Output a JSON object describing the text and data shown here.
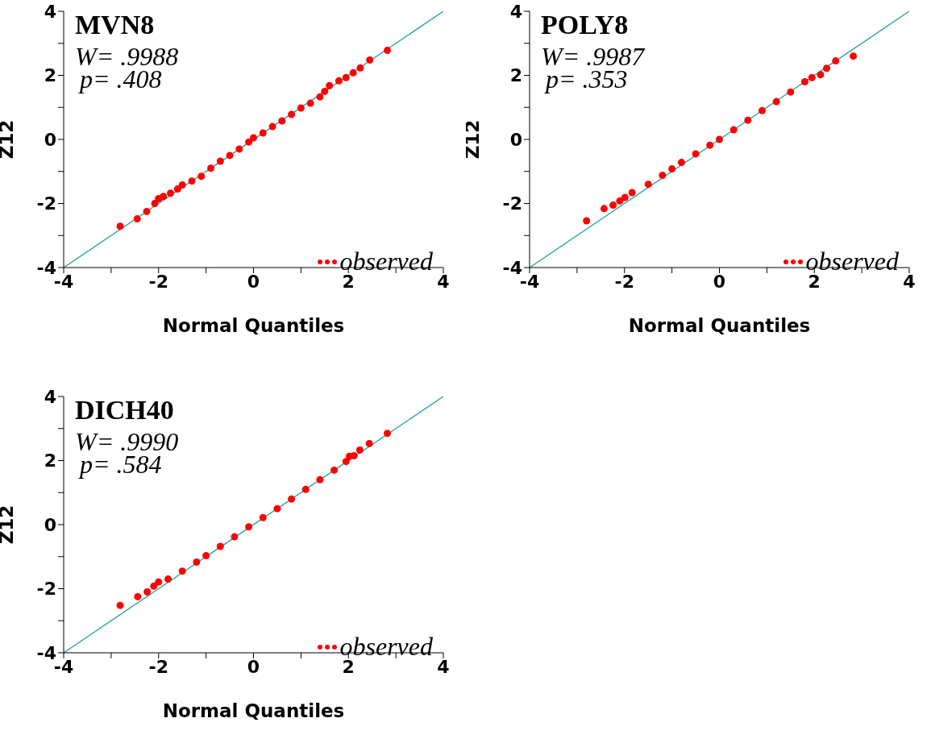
{
  "chart_data": [
    {
      "type": "scatter",
      "title": "MVN8",
      "xlabel": "Normal Quantiles",
      "ylabel": "Z12",
      "annotations": [
        "W= .9988",
        "p= .408"
      ],
      "xlim": [
        -4,
        4
      ],
      "ylim": [
        -4,
        4
      ],
      "xticks": [
        -4,
        {
          "value": -3,
          "label": null
        },
        -2,
        {
          "value": -1,
          "label": null
        },
        0,
        {
          "value": 1,
          "label": null
        },
        2,
        {
          "value": 3,
          "label": null
        },
        4
      ],
      "yticks": [
        -4,
        {
          "value": -3,
          "label": null
        },
        -2,
        {
          "value": -1,
          "label": null
        },
        0,
        {
          "value": 1,
          "label": null
        },
        2,
        {
          "value": 3,
          "label": null
        },
        4
      ],
      "legend": "bottom right",
      "series": [
        {
          "name": "observed",
          "color": "#ff0000",
          "marker": "circle",
          "x": [
            -2.81,
            -2.45,
            -2.25,
            -2.08,
            -2.0,
            -1.9,
            -1.75,
            -1.6,
            -1.5,
            -1.3,
            -1.1,
            -0.9,
            -0.7,
            -0.5,
            -0.3,
            -0.1,
            0,
            0.2,
            0.4,
            0.6,
            0.8,
            1.0,
            1.2,
            1.4,
            1.5,
            1.6,
            1.8,
            1.95,
            2.1,
            2.25,
            2.45,
            2.82
          ],
          "values": [
            -2.71,
            -2.48,
            -2.25,
            -2.0,
            -1.85,
            -1.78,
            -1.68,
            -1.55,
            -1.42,
            -1.3,
            -1.15,
            -0.9,
            -0.68,
            -0.5,
            -0.3,
            -0.08,
            0.05,
            0.2,
            0.4,
            0.58,
            0.78,
            0.98,
            1.13,
            1.33,
            1.5,
            1.68,
            1.83,
            1.93,
            2.08,
            2.23,
            2.48,
            2.78
          ]
        },
        {
          "type": "line",
          "color": "#20a0a0",
          "x": [
            -4,
            4
          ],
          "values": [
            -4,
            4
          ]
        }
      ]
    },
    {
      "type": "scatter",
      "title": "POLY8",
      "xlabel": "Normal Quantiles",
      "ylabel": "Z12",
      "annotations": [
        "W= .9987",
        "p= .353"
      ],
      "xlim": [
        -4,
        4
      ],
      "ylim": [
        -4,
        4
      ],
      "xticks": [
        -4,
        {
          "value": -3,
          "label": null
        },
        -2,
        {
          "value": -1,
          "label": null
        },
        0,
        {
          "value": 1,
          "label": null
        },
        2,
        {
          "value": 3,
          "label": null
        },
        4
      ],
      "yticks": [
        -4,
        {
          "value": -3,
          "label": null
        },
        -2,
        {
          "value": -1,
          "label": null
        },
        0,
        {
          "value": 1,
          "label": null
        },
        2,
        {
          "value": 3,
          "label": null
        },
        4
      ],
      "legend": "bottom right",
      "series": [
        {
          "name": "observed",
          "color": "#ff0000",
          "marker": "circle",
          "x": [
            -2.8,
            -2.43,
            -2.24,
            -2.1,
            -1.99,
            -1.84,
            -1.5,
            -1.2,
            -1.0,
            -0.8,
            -0.5,
            -0.2,
            0,
            0.3,
            0.6,
            0.9,
            1.2,
            1.5,
            1.8,
            1.95,
            2.13,
            2.26,
            2.45,
            2.82
          ],
          "values": [
            -2.54,
            -2.16,
            -2.05,
            -1.92,
            -1.81,
            -1.66,
            -1.4,
            -1.12,
            -0.92,
            -0.72,
            -0.45,
            -0.18,
            0,
            0.3,
            0.6,
            0.9,
            1.18,
            1.48,
            1.8,
            1.93,
            2.02,
            2.22,
            2.45,
            2.6
          ]
        },
        {
          "type": "line",
          "color": "#20a0a0",
          "x": [
            -4,
            4
          ],
          "values": [
            -4,
            4
          ]
        }
      ]
    },
    {
      "type": "scatter",
      "title": "DICH40",
      "xlabel": "Normal Quantiles",
      "ylabel": "Z12",
      "annotations": [
        "W= .9990",
        "p= .584"
      ],
      "xlim": [
        -4,
        4
      ],
      "ylim": [
        -4,
        4
      ],
      "xticks": [
        -4,
        {
          "value": -3,
          "label": null
        },
        -2,
        {
          "value": -1,
          "label": null
        },
        0,
        {
          "value": 1,
          "label": null
        },
        2,
        {
          "value": 3,
          "label": null
        },
        4
      ],
      "yticks": [
        -4,
        {
          "value": -3,
          "label": null
        },
        -2,
        {
          "value": -1,
          "label": null
        },
        0,
        {
          "value": 1,
          "label": null
        },
        2,
        {
          "value": 3,
          "label": null
        },
        4
      ],
      "legend": "bottom right",
      "series": [
        {
          "name": "observed",
          "color": "#ff0000",
          "marker": "circle",
          "x": [
            -2.81,
            -2.44,
            -2.24,
            -2.1,
            -2.0,
            -1.8,
            -1.5,
            -1.2,
            -1.0,
            -0.7,
            -0.4,
            -0.1,
            0.2,
            0.5,
            0.8,
            1.1,
            1.4,
            1.7,
            1.95,
            2.02,
            2.12,
            2.24,
            2.44,
            2.82
          ],
          "values": [
            -2.52,
            -2.25,
            -2.1,
            -1.92,
            -1.79,
            -1.7,
            -1.45,
            -1.17,
            -0.97,
            -0.68,
            -0.38,
            -0.07,
            0.22,
            0.5,
            0.8,
            1.1,
            1.4,
            1.7,
            1.97,
            2.13,
            2.15,
            2.33,
            2.53,
            2.85
          ]
        },
        {
          "type": "line",
          "color": "#20a0a0",
          "x": [
            -4,
            4
          ],
          "values": [
            -4,
            4
          ]
        }
      ]
    }
  ]
}
